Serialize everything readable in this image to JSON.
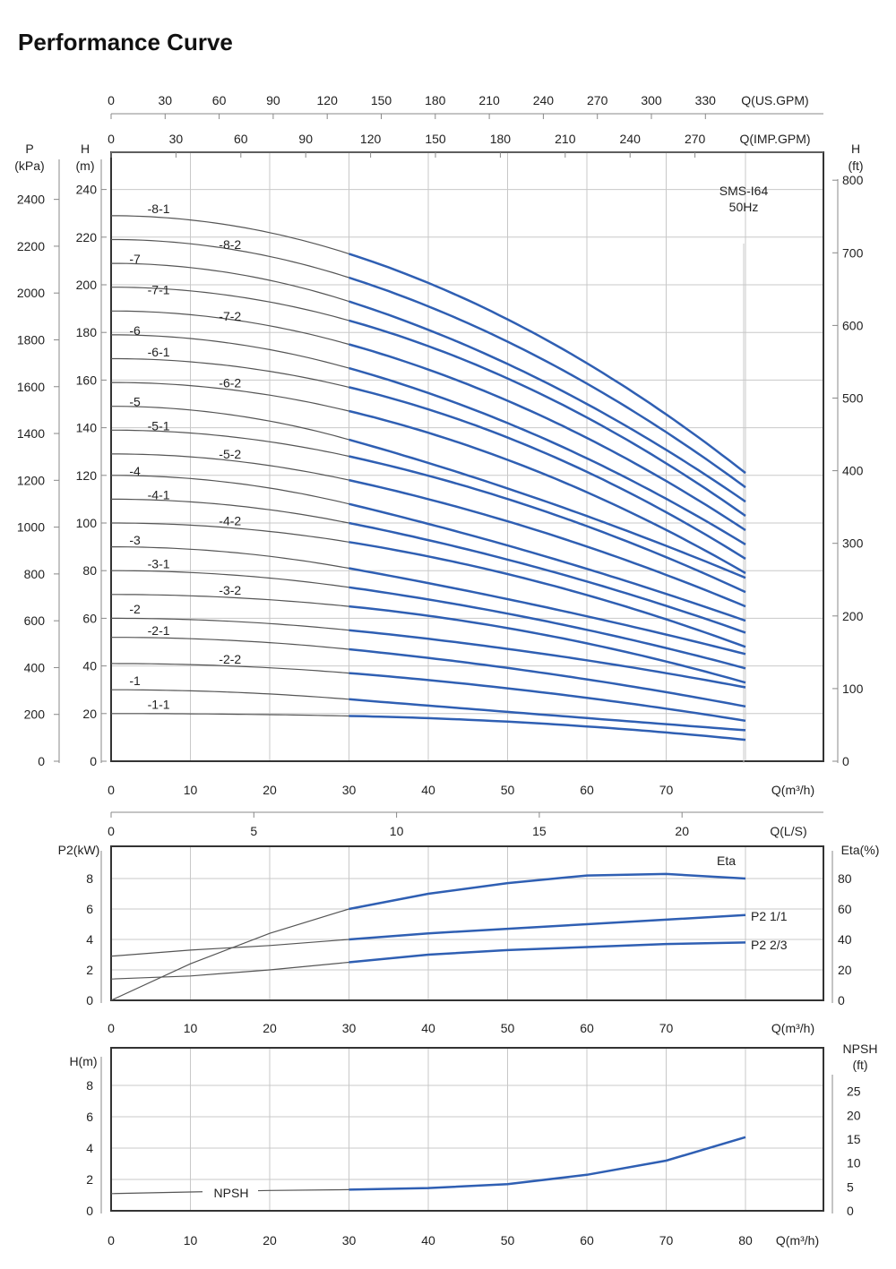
{
  "title": "Performance Curve",
  "chart_data": [
    {
      "type": "line",
      "name": "head-curves",
      "annotation": [
        "SMS-I64",
        "50Hz"
      ],
      "top_axes": [
        {
          "label": "Q(US.GPM)",
          "ticks": [
            "0",
            "30",
            "60",
            "90",
            "120",
            "150",
            "180",
            "210",
            "240",
            "270",
            "300",
            "330"
          ]
        },
        {
          "label": "Q(IMP.GPM)",
          "ticks": [
            "0",
            "30",
            "60",
            "90",
            "120",
            "150",
            "180",
            "210",
            "240",
            "270"
          ]
        }
      ],
      "xlabel": "Q(m³/h)",
      "xticks": [
        "0",
        "10",
        "20",
        "30",
        "40",
        "50",
        "60",
        "70"
      ],
      "xlim": [
        0,
        90
      ],
      "left_axes": [
        {
          "label": [
            "P",
            "(kPa)"
          ],
          "ticks": [
            "0",
            "200",
            "400",
            "600",
            "800",
            "1000",
            "1200",
            "1400",
            "1600",
            "1800",
            "2000",
            "2200",
            "2400"
          ]
        },
        {
          "label": [
            "H",
            "(m)"
          ],
          "ticks": [
            "0",
            "20",
            "40",
            "60",
            "80",
            "100",
            "120",
            "140",
            "160",
            "180",
            "200",
            "220",
            "240"
          ]
        }
      ],
      "right_axis": {
        "label": [
          "H",
          "(ft)"
        ],
        "ticks": [
          "0",
          "100",
          "200",
          "300",
          "400",
          "500",
          "600",
          "700",
          "800"
        ]
      },
      "ylim": [
        0,
        255
      ],
      "x_split": 30,
      "x_end": 80,
      "series": [
        {
          "name": "-8-1",
          "h0": 229,
          "h30": 213,
          "h80": 121,
          "label_q": 6,
          "label_h": 230
        },
        {
          "name": "-8-2",
          "h0": 219,
          "h30": 203,
          "h80": 115
        },
        {
          "name": "-7",
          "h0": 209,
          "h30": 193,
          "h80": 109,
          "label_q": 3,
          "label_h": 209
        },
        {
          "name": "-8-2",
          "h0": 219,
          "h30": 203,
          "h80": 115,
          "label_q": 15,
          "label_h": 215
        },
        {
          "name": "-7-1",
          "h0": 199,
          "h30": 185,
          "h80": 103,
          "label_q": 6,
          "label_h": 196
        },
        {
          "name": "-7-2",
          "h0": 189,
          "h30": 175,
          "h80": 97,
          "label_q": 15,
          "label_h": 185
        },
        {
          "name": "-6",
          "h0": 179,
          "h30": 165,
          "h80": 91,
          "label_q": 3,
          "label_h": 179
        },
        {
          "name": "-6-1",
          "h0": 169,
          "h30": 157,
          "h80": 85,
          "label_q": 6,
          "label_h": 170
        },
        {
          "name": "-6-2",
          "h0": 159,
          "h30": 147,
          "h80": 79,
          "label_q": 15,
          "label_h": 157
        },
        {
          "name": "-5",
          "h0": 149,
          "h30": 135,
          "h80": 77,
          "label_q": 3,
          "label_h": 149
        },
        {
          "name": "-5-1",
          "h0": 139,
          "h30": 128,
          "h80": 71,
          "label_q": 6,
          "label_h": 139
        },
        {
          "name": "-5-2",
          "h0": 129,
          "h30": 118,
          "h80": 65,
          "label_q": 15,
          "label_h": 127
        },
        {
          "name": "-4",
          "h0": 120,
          "h30": 108,
          "h80": 59,
          "label_q": 3,
          "label_h": 120
        },
        {
          "name": "-4-1",
          "h0": 110,
          "h30": 100,
          "h80": 54,
          "label_q": 6,
          "label_h": 110
        },
        {
          "name": "-4-2",
          "h0": 100,
          "h30": 92,
          "h80": 48,
          "label_q": 15,
          "label_h": 99
        },
        {
          "name": "-3",
          "h0": 90,
          "h30": 81,
          "h80": 45,
          "label_q": 3,
          "label_h": 91
        },
        {
          "name": "-3-1",
          "h0": 80,
          "h30": 73,
          "h80": 39,
          "label_q": 6,
          "label_h": 81
        },
        {
          "name": "-3-2",
          "h0": 70,
          "h30": 65,
          "h80": 33,
          "label_q": 15,
          "label_h": 70
        },
        {
          "name": "-2",
          "h0": 60,
          "h30": 55,
          "h80": 31,
          "label_q": 3,
          "label_h": 62
        },
        {
          "name": "-2-1",
          "h0": 52,
          "h30": 47,
          "h80": 23,
          "label_q": 6,
          "label_h": 53
        },
        {
          "name": "-2-2",
          "h0": 41,
          "h30": 37,
          "h80": 17,
          "label_q": 15,
          "label_h": 41
        },
        {
          "name": "-1",
          "h0": 30,
          "h30": 26,
          "h80": 13,
          "label_q": 3,
          "label_h": 32
        },
        {
          "name": "-1-1",
          "h0": 20,
          "h30": 19,
          "h80": 9,
          "label_q": 6,
          "label_h": 22
        }
      ]
    },
    {
      "type": "line",
      "name": "power-efficiency",
      "top_axis": {
        "label": "Q(L/S)",
        "ticks": [
          "0",
          "5",
          "10",
          "15",
          "20"
        ]
      },
      "xlabel": "Q(m³/h)",
      "xticks": [
        "0",
        "10",
        "20",
        "30",
        "40",
        "50",
        "60",
        "70"
      ],
      "left_axis": {
        "label": "P2(kW)",
        "ticks": [
          "0",
          "2",
          "4",
          "6",
          "8"
        ]
      },
      "right_axis": {
        "label": "Eta(%)",
        "ticks": [
          "0",
          "20",
          "40",
          "60",
          "80"
        ]
      },
      "ylim": [
        0,
        10
      ],
      "series": [
        {
          "name": "Eta",
          "x": [
            0,
            10,
            20,
            30,
            40,
            50,
            60,
            70,
            80
          ],
          "y": [
            0,
            2.4,
            4.4,
            6.0,
            7.0,
            7.7,
            8.2,
            8.3,
            8.0
          ]
        },
        {
          "name": "P2 1/1",
          "x": [
            0,
            10,
            20,
            30,
            40,
            50,
            60,
            70,
            80
          ],
          "y": [
            2.9,
            3.3,
            3.6,
            4.0,
            4.4,
            4.7,
            5.0,
            5.3,
            5.6
          ]
        },
        {
          "name": "P2 2/3",
          "x": [
            0,
            10,
            20,
            30,
            40,
            50,
            60,
            70,
            80
          ],
          "y": [
            1.4,
            1.6,
            2.0,
            2.5,
            3.0,
            3.3,
            3.5,
            3.7,
            3.8
          ]
        }
      ],
      "series_labels": [
        "Eta",
        "P2 1/1",
        "P2 2/3"
      ]
    },
    {
      "type": "line",
      "name": "npsh",
      "xlabel": "Q(m³/h)",
      "xticks": [
        "0",
        "10",
        "20",
        "30",
        "40",
        "50",
        "60",
        "70",
        "80"
      ],
      "left_axis": {
        "label": "H(m)",
        "ticks": [
          "0",
          "2",
          "4",
          "6",
          "8"
        ]
      },
      "right_axis": {
        "label": [
          "NPSH",
          "(ft)"
        ],
        "ticks": [
          "0",
          "5",
          "10",
          "15",
          "20",
          "25"
        ]
      },
      "ylim": [
        0,
        9.8
      ],
      "series": [
        {
          "name": "NPSH",
          "x": [
            0,
            10,
            20,
            30,
            40,
            50,
            60,
            70,
            80
          ],
          "y": [
            1.1,
            1.2,
            1.3,
            1.35,
            1.45,
            1.7,
            2.3,
            3.2,
            4.7
          ]
        }
      ]
    }
  ]
}
